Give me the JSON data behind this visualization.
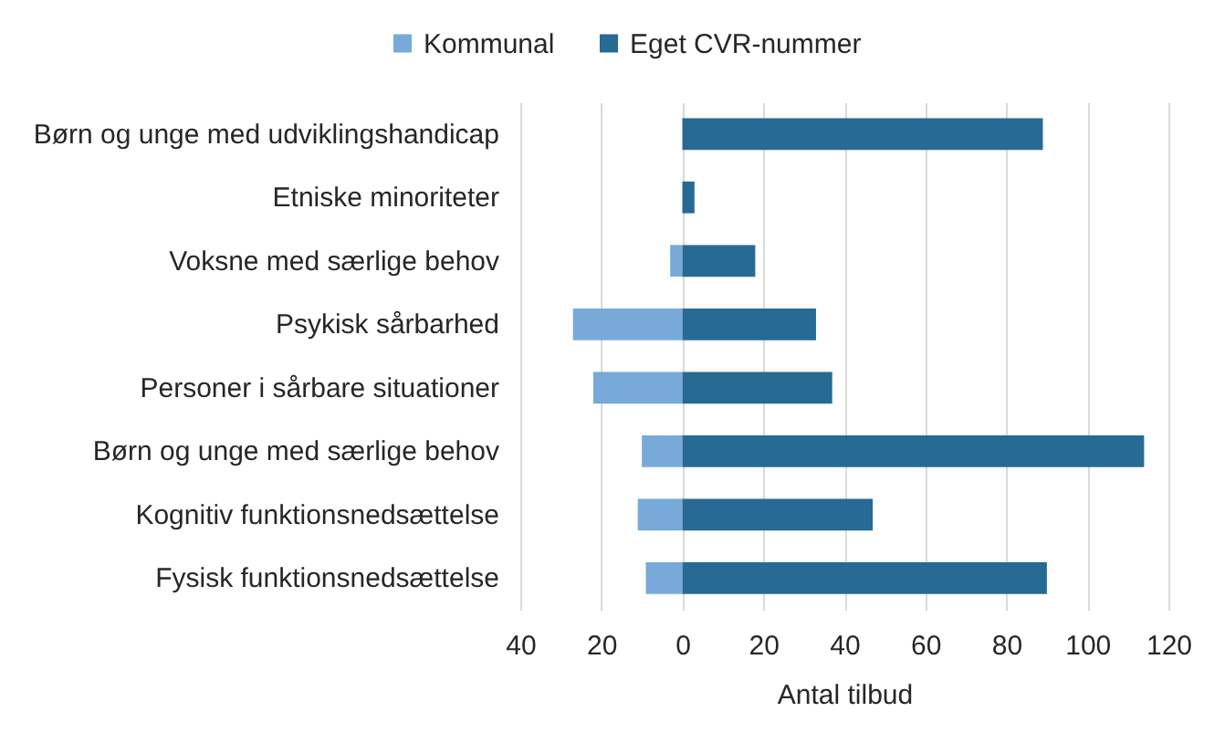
{
  "chart_data": {
    "type": "bar",
    "orientation": "horizontal",
    "stacked": true,
    "categories": [
      "Børn og unge med udviklingshandicap",
      "Etniske minoriteter",
      "Voksne med særlige behov",
      "Psykisk sårbarhed",
      "Personer i sårbare situationer",
      "Børn og unge med særlige behov",
      "Kognitiv funktionsnedsættelse",
      "Fysisk funktionsnedsættelse"
    ],
    "series": [
      {
        "name": "Kommunal",
        "color": "#77aad9",
        "values": [
          null,
          null,
          -3,
          -27,
          -22,
          -10,
          -11,
          -9
        ]
      },
      {
        "name": "Eget CVR-nummer",
        "color": "#276a94",
        "values": [
          89,
          3,
          18,
          33,
          37,
          114,
          47,
          90
        ]
      }
    ],
    "xlabel": "Antal tilbud",
    "xlim": [
      -40,
      120
    ],
    "xticks": [
      {
        "value": -40,
        "label": "40"
      },
      {
        "value": -20,
        "label": "20"
      },
      0,
      20,
      40,
      60,
      80,
      100,
      120
    ],
    "grid": "x",
    "legend": "top"
  }
}
